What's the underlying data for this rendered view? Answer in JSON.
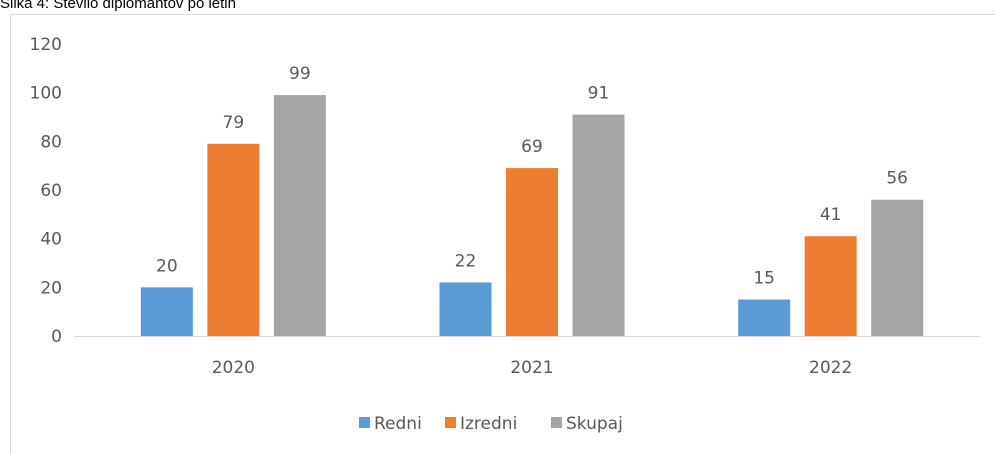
{
  "chart_data": {
    "type": "bar",
    "title": "Slika 4: Število diplomantov po letih",
    "categories": [
      "2020",
      "2021",
      "2022"
    ],
    "series": [
      {
        "name": "Redni",
        "color": "#5b9bd5",
        "values": [
          20,
          22,
          15
        ]
      },
      {
        "name": "Izredni",
        "color": "#ed7d31",
        "values": [
          79,
          69,
          41
        ]
      },
      {
        "name": "Skupaj",
        "color": "#a5a5a5",
        "values": [
          99,
          91,
          56
        ]
      }
    ],
    "ylim": [
      0,
      120
    ],
    "yticks": [
      0,
      20,
      40,
      60,
      80,
      100,
      120
    ],
    "grid": false,
    "legend": "bottom"
  }
}
